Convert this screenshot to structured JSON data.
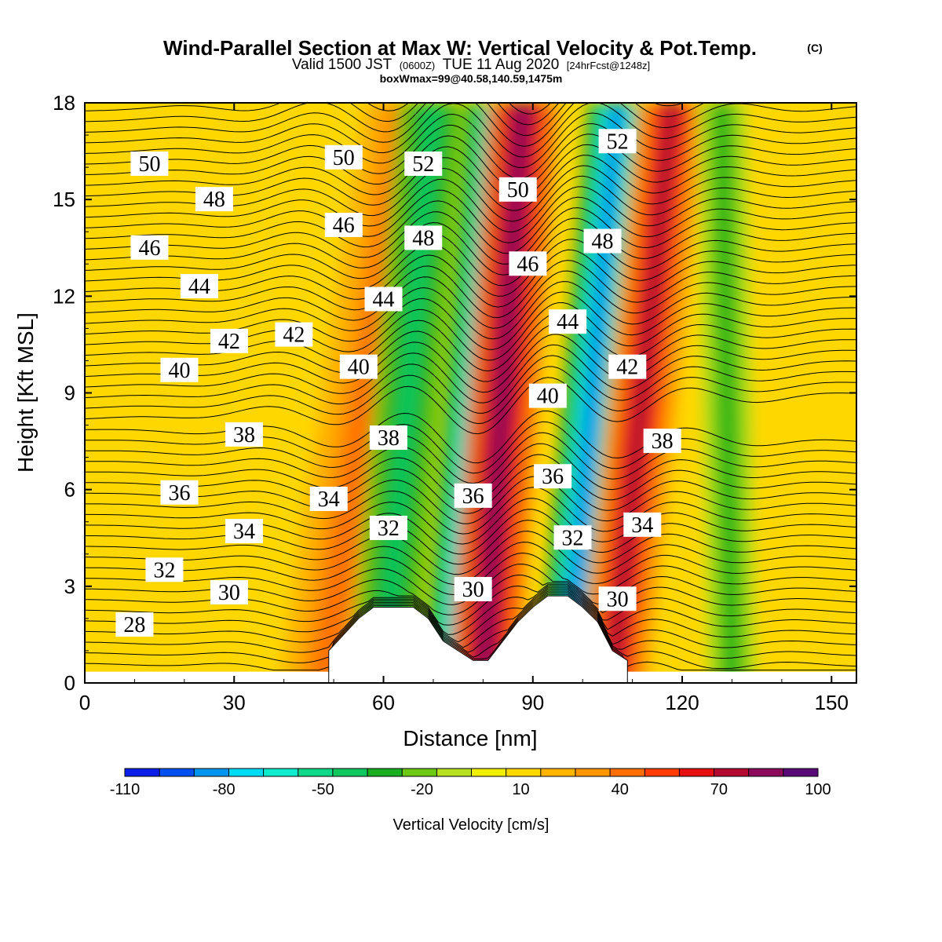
{
  "header": {
    "title": "Wind-Parallel Section at Max W: Vertical Velocity & Pot.Temp.",
    "copyright": "(C)",
    "valid_prefix": "Valid 1500 JST",
    "valid_utc": "(0600Z)",
    "valid_date": "TUE 11 Aug 2020",
    "forecast_note": "[24hrFcst@1248z]",
    "box_info": "boxWmax=99@40.58,140.59,1475m"
  },
  "colorbar": {
    "label": "Vertical Velocity [cm/s]",
    "tick_labels": [
      "-110",
      "-80",
      "-50",
      "-20",
      "10",
      "40",
      "70",
      "100"
    ],
    "colors": [
      "#0a1ee8",
      "#0050f0",
      "#0096f0",
      "#00dcf5",
      "#10eacd",
      "#10d88a",
      "#10c860",
      "#18b020",
      "#6cc810",
      "#b4e01e",
      "#f0f000",
      "#ffd800",
      "#ffb400",
      "#ff9600",
      "#ff6e00",
      "#ff3c00",
      "#e60f0f",
      "#b40a32",
      "#8c0a5a",
      "#5a0a78"
    ]
  },
  "chart_data": {
    "type": "contour",
    "title": "Wind-Parallel Section at Max W: Vertical Velocity & Pot.Temp.",
    "xlabel": "Distance [nm]",
    "ylabel": "Height [Kft MSL]",
    "xlim": [
      0,
      155
    ],
    "ylim": [
      0,
      18
    ],
    "x_ticks": [
      "0",
      "30",
      "60",
      "90",
      "120",
      "150"
    ],
    "y_ticks": [
      "0",
      "3",
      "6",
      "9",
      "12",
      "15",
      "18"
    ],
    "terrain_profile": [
      [
        49,
        1.0
      ],
      [
        52,
        1.5
      ],
      [
        55,
        2.0
      ],
      [
        58,
        2.35
      ],
      [
        66,
        2.35
      ],
      [
        69,
        2.0
      ],
      [
        72,
        1.3
      ],
      [
        75,
        1.0
      ],
      [
        78,
        0.7
      ],
      [
        81,
        0.7
      ],
      [
        84,
        1.3
      ],
      [
        87,
        1.9
      ],
      [
        90,
        2.35
      ],
      [
        93,
        2.7
      ],
      [
        97,
        2.7
      ],
      [
        100,
        2.35
      ],
      [
        103,
        1.9
      ],
      [
        106,
        1.0
      ],
      [
        109,
        0.7
      ]
    ],
    "vertical_velocity_bands": [
      {
        "base_x": 48,
        "top_x": 65,
        "half_width": 9,
        "value": 40
      },
      {
        "base_x": 60,
        "top_x": 70,
        "half_width": 7,
        "value": -40
      },
      {
        "base_x": 73,
        "top_x": 82,
        "half_width": 5,
        "value": -75
      },
      {
        "base_x": 80,
        "top_x": 88,
        "half_width": 7,
        "value": 85
      },
      {
        "base_x": 97,
        "top_x": 107,
        "half_width": 6,
        "value": -80
      },
      {
        "base_x": 106,
        "top_x": 118,
        "half_width": 7,
        "value": 75
      },
      {
        "base_x": 130,
        "top_x": 128,
        "half_width": 5,
        "value": -30
      }
    ],
    "theta_contour_labels": [
      {
        "text": "50",
        "x": 13,
        "y": 16.1
      },
      {
        "text": "48",
        "x": 26,
        "y": 15.0
      },
      {
        "text": "46",
        "x": 13,
        "y": 13.5
      },
      {
        "text": "44",
        "x": 23,
        "y": 12.3
      },
      {
        "text": "42",
        "x": 29,
        "y": 10.6
      },
      {
        "text": "42",
        "x": 42,
        "y": 10.8
      },
      {
        "text": "40",
        "x": 19,
        "y": 9.7
      },
      {
        "text": "38",
        "x": 32,
        "y": 7.7
      },
      {
        "text": "36",
        "x": 19,
        "y": 5.9
      },
      {
        "text": "34",
        "x": 32,
        "y": 4.7
      },
      {
        "text": "32",
        "x": 16,
        "y": 3.5
      },
      {
        "text": "30",
        "x": 29,
        "y": 2.8
      },
      {
        "text": "28",
        "x": 10,
        "y": 1.8
      },
      {
        "text": "50",
        "x": 52,
        "y": 16.3
      },
      {
        "text": "46",
        "x": 52,
        "y": 14.2
      },
      {
        "text": "44",
        "x": 60,
        "y": 11.9
      },
      {
        "text": "40",
        "x": 55,
        "y": 9.8
      },
      {
        "text": "38",
        "x": 61,
        "y": 7.6
      },
      {
        "text": "34",
        "x": 49,
        "y": 5.7
      },
      {
        "text": "32",
        "x": 61,
        "y": 4.8
      },
      {
        "text": "52",
        "x": 68,
        "y": 16.1
      },
      {
        "text": "48",
        "x": 68,
        "y": 13.8
      },
      {
        "text": "36",
        "x": 78,
        "y": 5.8
      },
      {
        "text": "30",
        "x": 78,
        "y": 2.9
      },
      {
        "text": "50",
        "x": 87,
        "y": 15.3
      },
      {
        "text": "46",
        "x": 89,
        "y": 13.0
      },
      {
        "text": "44",
        "x": 97,
        "y": 11.2
      },
      {
        "text": "40",
        "x": 93,
        "y": 8.9
      },
      {
        "text": "36",
        "x": 94,
        "y": 6.4
      },
      {
        "text": "32",
        "x": 98,
        "y": 4.5
      },
      {
        "text": "52",
        "x": 107,
        "y": 16.8
      },
      {
        "text": "48",
        "x": 104,
        "y": 13.7
      },
      {
        "text": "42",
        "x": 109,
        "y": 9.8
      },
      {
        "text": "38",
        "x": 116,
        "y": 7.5
      },
      {
        "text": "34",
        "x": 112,
        "y": 4.9
      },
      {
        "text": "30",
        "x": 107,
        "y": 2.6
      }
    ]
  }
}
